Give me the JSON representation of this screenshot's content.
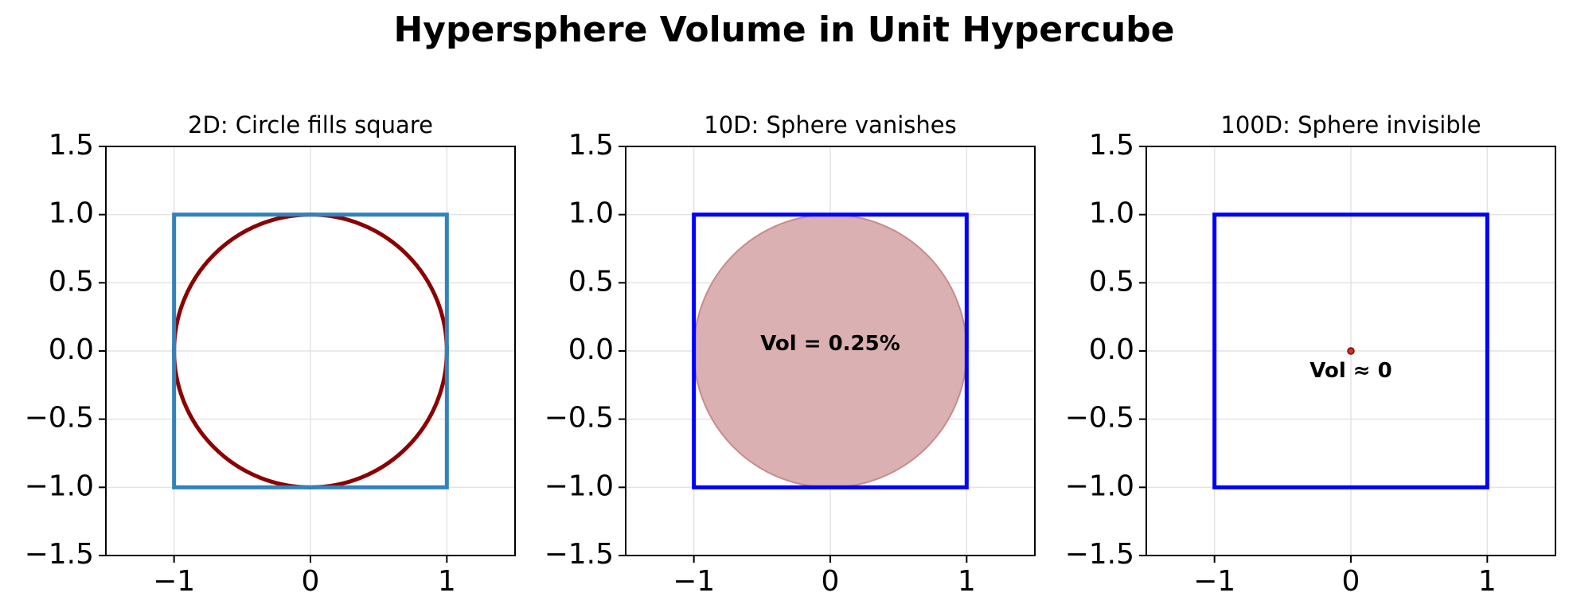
{
  "figure": {
    "title": "Hypersphere Volume in Unit Hypercube"
  },
  "chart_data": [
    {
      "type": "scatter",
      "title": "2D: Circle fills square",
      "xlim": [
        -1.5,
        1.5
      ],
      "ylim": [
        -1.5,
        1.5
      ],
      "xticks": [
        "−1",
        "0",
        "1"
      ],
      "xtick_values": [
        -1,
        0,
        1
      ],
      "yticks": [
        "1.5",
        "1.0",
        "0.5",
        "0.0",
        "−0.5",
        "−1.0",
        "−1.5"
      ],
      "ytick_values": [
        1.5,
        1.0,
        0.5,
        0.0,
        -0.5,
        -1.0,
        -1.5
      ],
      "grid": true,
      "square": {
        "corners": [
          -1,
          1
        ],
        "color": "#3182bd"
      },
      "sphere": {
        "center": [
          0,
          0
        ],
        "radius": 1.0,
        "fill": "none",
        "stroke": "#8b0000"
      },
      "annotation": ""
    },
    {
      "type": "scatter",
      "title": "10D: Sphere vanishes",
      "xlim": [
        -1.5,
        1.5
      ],
      "ylim": [
        -1.5,
        1.5
      ],
      "xticks": [
        "−1",
        "0",
        "1"
      ],
      "xtick_values": [
        -1,
        0,
        1
      ],
      "yticks": [
        "1.5",
        "1.0",
        "0.5",
        "0.0",
        "−0.5",
        "−1.0",
        "−1.5"
      ],
      "ytick_values": [
        1.5,
        1.0,
        0.5,
        0.0,
        -0.5,
        -1.0,
        -1.5
      ],
      "grid": true,
      "square": {
        "corners": [
          -1,
          1
        ],
        "color": "#0000ff"
      },
      "sphere": {
        "center": [
          0,
          0
        ],
        "radius": 1.0,
        "fill": "#dab0b2",
        "stroke": "#c98a8c"
      },
      "annotation": "Vol = 0.25%",
      "annotation_at": [
        0,
        0.05
      ]
    },
    {
      "type": "scatter",
      "title": "100D: Sphere invisible",
      "xlim": [
        -1.5,
        1.5
      ],
      "ylim": [
        -1.5,
        1.5
      ],
      "xticks": [
        "−1",
        "0",
        "1"
      ],
      "xtick_values": [
        -1,
        0,
        1
      ],
      "yticks": [
        "1.5",
        "1.0",
        "0.5",
        "0.0",
        "−0.5",
        "−1.0",
        "−1.5"
      ],
      "ytick_values": [
        1.5,
        1.0,
        0.5,
        0.0,
        -0.5,
        -1.0,
        -1.5
      ],
      "grid": true,
      "square": {
        "corners": [
          -1,
          1
        ],
        "color": "#0000ff"
      },
      "sphere": {
        "center": [
          0,
          0
        ],
        "radius": 0.02,
        "fill": "#c0392b",
        "stroke": "#8b0000"
      },
      "annotation": "Vol ≈ 0",
      "annotation_at": [
        0,
        -0.15
      ]
    }
  ]
}
